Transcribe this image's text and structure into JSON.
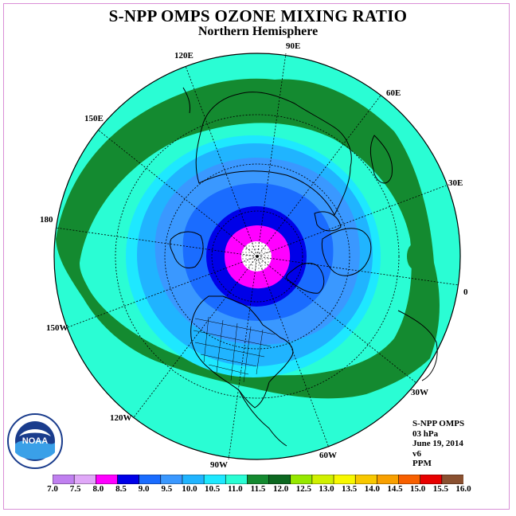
{
  "title": "S-NPP OMPS OZONE MIXING RATIO",
  "subtitle": "Northern Hemisphere",
  "longitude_labels": [
    "90E",
    "60E",
    "30E",
    "0",
    "30W",
    "60W",
    "90W",
    "120W",
    "150W",
    "180",
    "150E",
    "120E"
  ],
  "info": {
    "instrument": "S-NPP OMPS",
    "level": "03 hPa",
    "date": "June 19, 2014",
    "version": "v6",
    "units": "PPM"
  },
  "logo": {
    "icon": "noaa-logo",
    "text": "NOAA"
  },
  "colorbar": {
    "ticks": [
      "7.0",
      "7.5",
      "8.0",
      "8.5",
      "9.0",
      "9.5",
      "10.0",
      "10.5",
      "11.0",
      "11.5",
      "12.0",
      "12.5",
      "13.0",
      "13.5",
      "14.0",
      "14.5",
      "15.0",
      "15.5",
      "16.0"
    ],
    "colors": [
      "#c080f0",
      "#e0a8f8",
      "#ff00ff",
      "#0000e8",
      "#1a6cff",
      "#3a98ff",
      "#20b4ff",
      "#1ee8ff",
      "#2afdd4",
      "#148a30",
      "#0c6820",
      "#96e800",
      "#d0f000",
      "#f8f800",
      "#f8c800",
      "#f8a000",
      "#f86000",
      "#e80000",
      "#8a5030"
    ]
  },
  "map_fields": {
    "projection": "polar stereographic, north pole centered",
    "contour_bands_ppm": [
      "8.0-8.5",
      "8.5-9.0",
      "9.0-9.5",
      "9.5-10.0",
      "10.0-10.5",
      "10.5-11.0",
      "11.0-11.5",
      "11.5-12.0"
    ],
    "polar_no_data": true
  }
}
